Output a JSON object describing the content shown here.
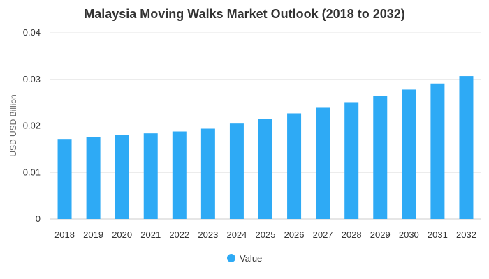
{
  "chart_data": {
    "type": "bar",
    "title": "Malaysia Moving Walks Market Outlook (2018 to 2032)",
    "xlabel": "",
    "ylabel": "USD USD Billion",
    "categories": [
      "2018",
      "2019",
      "2020",
      "2021",
      "2022",
      "2023",
      "2024",
      "2025",
      "2026",
      "2027",
      "2028",
      "2029",
      "2030",
      "2031",
      "2032"
    ],
    "series": [
      {
        "name": "Value",
        "color": "#2eaaf5",
        "values": [
          0.0172,
          0.0176,
          0.0181,
          0.0184,
          0.0188,
          0.0194,
          0.0205,
          0.0215,
          0.0227,
          0.0239,
          0.0251,
          0.0264,
          0.0278,
          0.0291,
          0.0307
        ]
      }
    ],
    "ylim": [
      0,
      0.04
    ],
    "yticks": [
      0,
      0.01,
      0.02,
      0.03,
      0.04
    ],
    "ytick_labels": [
      "0",
      "0.01",
      "0.02",
      "0.03",
      "0.04"
    ],
    "grid": true,
    "legend_position": "bottom-center"
  }
}
